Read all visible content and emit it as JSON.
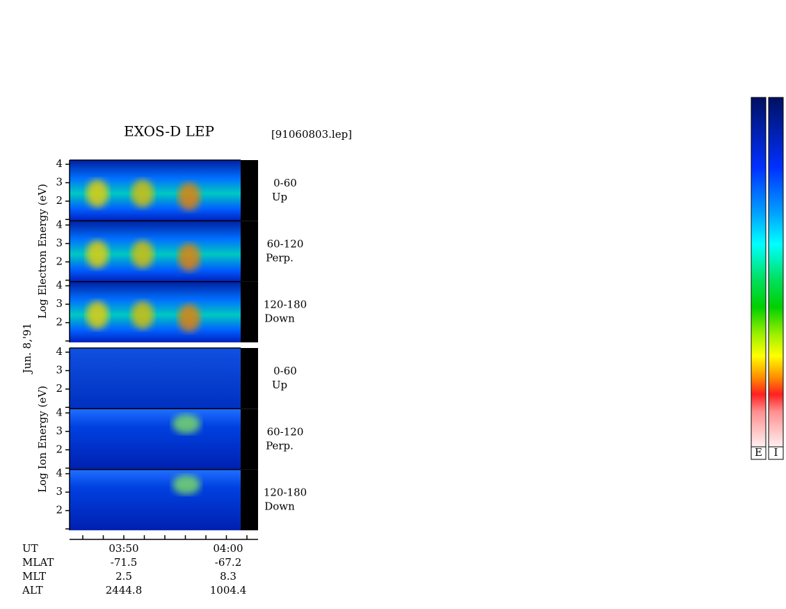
{
  "header": {
    "title": "EXOS-D LEP",
    "file": "[91060803.lep]",
    "date": "Jun. 8,'91"
  },
  "groups": [
    {
      "axis_label": "Log   Electron   Energy (eV)",
      "panels": [
        {
          "ticks": [
            "4",
            "3",
            "2"
          ],
          "label_lines": [
            "0-60",
            "Up"
          ]
        },
        {
          "ticks": [
            "4",
            "3",
            "2"
          ],
          "label_lines": [
            "60-120",
            "Perp."
          ]
        },
        {
          "ticks": [
            "4",
            "3",
            "2"
          ],
          "label_lines": [
            "120-180",
            "Down"
          ]
        }
      ]
    },
    {
      "axis_label": "Log   Ion   Energy (eV)",
      "panels": [
        {
          "ticks": [
            "4",
            "3",
            "2"
          ],
          "label_lines": [
            "0-60",
            "Up"
          ]
        },
        {
          "ticks": [
            "4",
            "3",
            "2"
          ],
          "label_lines": [
            "60-120",
            "Perp."
          ]
        },
        {
          "ticks": [
            "4",
            "3",
            "2"
          ],
          "label_lines": [
            "120-180",
            "Down"
          ]
        }
      ]
    }
  ],
  "footer": {
    "rows": [
      {
        "name": "UT",
        "values": [
          "03:50",
          "04:00"
        ]
      },
      {
        "name": "MLAT",
        "values": [
          "-71.5",
          "-67.2"
        ]
      },
      {
        "name": "MLT",
        "values": [
          "2.5",
          "8.3"
        ]
      },
      {
        "name": "ALT",
        "values": [
          "2444.8",
          "1004.4"
        ]
      }
    ]
  },
  "colorbars": [
    "E",
    "I"
  ]
}
